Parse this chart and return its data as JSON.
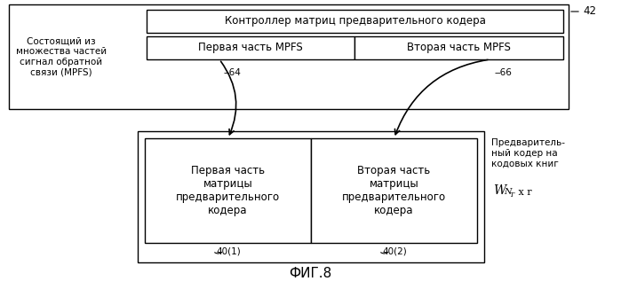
{
  "title": "ФИГ.8",
  "bg_color": "#ffffff",
  "line_color": "#000000",
  "font_size_small": 7.5,
  "font_size_medium": 8.5,
  "font_size_title": 11,
  "left_label": "Состоящий из\nмножества частей\nсигнал обратной\nсвязи (MPFS)",
  "outer_box_label": "Контроллер матриц предварительного кодера",
  "mpfs1_label": "Первая часть MPFS",
  "mpfs2_label": "Вторая часть MPFS",
  "label_42": "42",
  "label_64": "64",
  "label_66": "66",
  "precode1_label": "Первая часть\nматрицы\nпредварительного\nкодера",
  "precode2_label": "Вторая часть\nматрицы\nпредварительного\nкодера",
  "codebook_label": "Предваритель-\nный кодер на\nкодовых книг",
  "label_401": "40(1)",
  "label_402": "40(2)"
}
